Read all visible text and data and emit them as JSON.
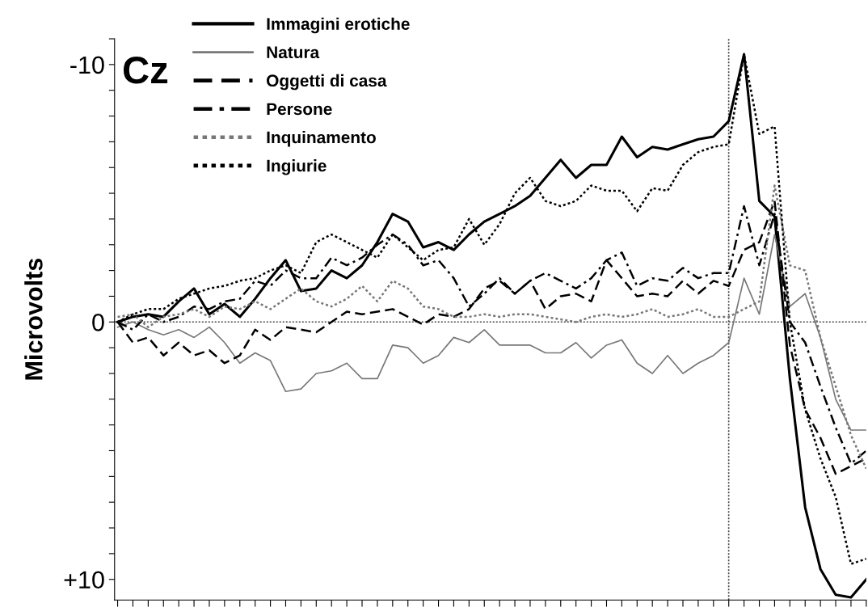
{
  "chart_data": {
    "type": "line",
    "ylabel": "Microvolts",
    "annotations": [
      "Cz"
    ],
    "categories": [
      null,
      null,
      null,
      null,
      null,
      null,
      null,
      null,
      null,
      null,
      null,
      null,
      null,
      null,
      null,
      null,
      null,
      null,
      null,
      null,
      null,
      null,
      null,
      null,
      null,
      null,
      null,
      null,
      null,
      null,
      null,
      null,
      null,
      null,
      null,
      null,
      null,
      null,
      null,
      null,
      null,
      null,
      null,
      null,
      null,
      null,
      null,
      null,
      null,
      null
    ],
    "ylim": [
      10.8,
      -11
    ],
    "yticks": [
      {
        "value": -11,
        "label": null
      },
      {
        "value": -10,
        "label": "-10"
      },
      {
        "value": -9,
        "label": null
      },
      {
        "value": -8,
        "label": null
      },
      {
        "value": -7,
        "label": null
      },
      {
        "value": -6,
        "label": null
      },
      {
        "value": -5,
        "label": null
      },
      {
        "value": -4,
        "label": null
      },
      {
        "value": -3,
        "label": null
      },
      {
        "value": -2,
        "label": null
      },
      {
        "value": -1,
        "label": null
      },
      0,
      {
        "value": 1,
        "label": null
      },
      {
        "value": 2,
        "label": null
      },
      {
        "value": 3,
        "label": null
      },
      {
        "value": 4,
        "label": null
      },
      {
        "value": 5,
        "label": null
      },
      {
        "value": 6,
        "label": null
      },
      {
        "value": 7,
        "label": null
      },
      {
        "value": 8,
        "label": null
      },
      {
        "value": 9,
        "label": null
      },
      {
        "value": 10,
        "label": "+10"
      }
    ],
    "tick_labels": "y",
    "grid": false,
    "legend": "top left",
    "marker": "none",
    "ref_lines": [
      {
        "axis": "y",
        "value": 0,
        "line_style": "dotted",
        "color": "#444444"
      }
    ],
    "series": [
      {
        "name": "Immagini erotiche",
        "color": "#000000",
        "line_style": "solid",
        "values": [
          0,
          -0.2,
          -0.3,
          -0.2,
          -0.8,
          -1.3,
          -0.3,
          -0.7,
          -0.2,
          -0.9,
          -1.7,
          -2.4,
          -1.2,
          -1.3,
          -2.0,
          -1.7,
          -2.2,
          -3.1,
          -4.2,
          -3.9,
          -2.9,
          -3.1,
          -2.8,
          -3.4,
          -3.9,
          -4.2,
          -4.5,
          -4.9,
          -5.6,
          -6.3,
          -5.6,
          -6.1,
          -6.1,
          -7.2,
          -6.4,
          -6.8,
          -6.7,
          -6.9,
          -7.1,
          -7.2,
          -7.8,
          -10.4,
          -4.7,
          -4.1,
          2.2,
          7.2,
          9.6,
          10.6,
          10.7,
          10.0
        ]
      },
      {
        "name": "Natura",
        "color": "#777777",
        "line_style": "solid",
        "values": [
          0.2,
          0,
          0.3,
          0.5,
          0.3,
          0.6,
          0.2,
          0.8,
          1.6,
          1.2,
          1.5,
          2.7,
          2.6,
          2.0,
          1.9,
          1.6,
          2.2,
          2.2,
          0.9,
          1.0,
          1.6,
          1.3,
          0.6,
          0.8,
          0.3,
          0.9,
          0.9,
          0.9,
          1.2,
          1.2,
          0.8,
          1.4,
          0.9,
          0.7,
          1.6,
          2.0,
          1.3,
          2.0,
          1.6,
          1.3,
          0.8,
          -1.7,
          -0.3,
          -3.4,
          -0.6,
          -1.1,
          0.6,
          3.0,
          4.2,
          4.2
        ]
      },
      {
        "name": "Oggetti di casa",
        "color": "#000000",
        "line_style": "dashed",
        "values": [
          0,
          0.8,
          0.6,
          1.3,
          0.8,
          1.3,
          1.1,
          1.6,
          1.3,
          0.3,
          0.7,
          0.2,
          0.3,
          0.4,
          0,
          -0.4,
          -0.3,
          -0.4,
          -0.5,
          -0.2,
          0.1,
          -0.3,
          -0.2,
          -0.5,
          -1.3,
          -1.6,
          -1.1,
          -1.6,
          -0.5,
          -1.0,
          -1.1,
          -0.8,
          -2.4,
          -1.7,
          -1.0,
          -1.1,
          -1.0,
          -1.6,
          -1.1,
          -1.6,
          -1.4,
          -2.8,
          -3.1,
          -4.7,
          0.9,
          3.4,
          4.5,
          5.9,
          5.6,
          5.3
        ]
      },
      {
        "name": "Persone",
        "color": "#000000",
        "line_style": "dashdot",
        "values": [
          0,
          0.3,
          -0.3,
          0,
          -0.2,
          -0.6,
          -0.5,
          -0.8,
          -0.9,
          -1.6,
          -1.4,
          -2.0,
          -1.7,
          -1.7,
          -2.5,
          -2.2,
          -2.5,
          -3.0,
          -3.4,
          -3.0,
          -2.2,
          -2.4,
          -1.7,
          -0.6,
          -1.1,
          -1.7,
          -1.1,
          -1.6,
          -1.9,
          -1.6,
          -1.3,
          -1.7,
          -2.4,
          -2.7,
          -1.4,
          -1.7,
          -1.6,
          -2.1,
          -1.7,
          -1.9,
          -1.9,
          -4.5,
          -2.2,
          -4.2,
          0,
          0.8,
          2.5,
          4.1,
          5.5,
          5.0
        ]
      },
      {
        "name": "Inquinamento",
        "color": "#777777",
        "line_style": "dotted",
        "values": [
          -0.2,
          -0.3,
          0.2,
          -0.2,
          -0.3,
          -0.5,
          -0.2,
          -0.6,
          -0.5,
          -0.8,
          -0.5,
          -0.9,
          -1.3,
          -0.8,
          -0.6,
          -0.9,
          -1.4,
          -0.8,
          -1.6,
          -1.3,
          -0.6,
          -0.5,
          -0.2,
          -0.2,
          -0.3,
          -0.2,
          -0.3,
          -0.3,
          -0.2,
          -0.1,
          0,
          -0.2,
          -0.3,
          -0.2,
          -0.3,
          -0.5,
          -0.2,
          -0.3,
          -0.5,
          -0.2,
          -0.2,
          -0.5,
          -0.8,
          -5.3,
          -2.2,
          -2.0,
          0.6,
          2.5,
          4.4,
          5.7
        ]
      },
      {
        "name": "Ingiurie",
        "color": "#000000",
        "line_style": "dotted",
        "values": [
          0,
          -0.3,
          -0.5,
          -0.5,
          -0.9,
          -1.1,
          -1.3,
          -1.4,
          -1.6,
          -1.7,
          -2.0,
          -2.2,
          -1.9,
          -3.1,
          -3.4,
          -3.1,
          -2.8,
          -2.5,
          -3.4,
          -2.9,
          -2.4,
          -2.8,
          -2.9,
          -4.0,
          -3.0,
          -3.8,
          -5.0,
          -5.6,
          -4.7,
          -4.5,
          -4.7,
          -5.3,
          -5.1,
          -5.1,
          -4.3,
          -5.2,
          -5.1,
          -6.1,
          -6.6,
          -6.8,
          -6.9,
          -10.4,
          -7.3,
          -7.6,
          0,
          3.4,
          5.3,
          6.8,
          9.4,
          9.2
        ]
      }
    ]
  }
}
